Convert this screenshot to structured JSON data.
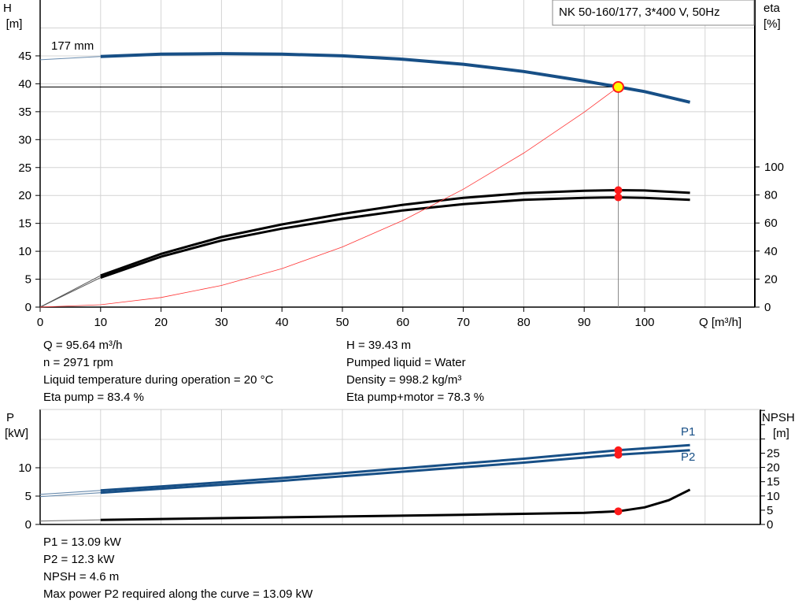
{
  "chart_data": [
    {
      "type": "line",
      "title": "NK 50-160/177, 3*400 V, 50Hz",
      "xlabel": "Q [m³/h]",
      "ylabel_left": [
        "H",
        "[m]"
      ],
      "ylabel_right": [
        "eta",
        "[%]"
      ],
      "xlim": [
        0,
        118
      ],
      "ylim_left": [
        0,
        55
      ],
      "ylim_right_eta": [
        0,
        100
      ],
      "x_ticks": [
        0,
        10,
        20,
        30,
        40,
        50,
        60,
        70,
        80,
        90,
        100
      ],
      "y_ticks_left": [
        0,
        5,
        10,
        15,
        20,
        25,
        30,
        35,
        40,
        45
      ],
      "y_ticks_right": [
        0,
        20,
        40,
        60,
        80,
        100
      ],
      "grid": true,
      "curve_label": "177 mm",
      "series": [
        {
          "key": "H",
          "axis": "left",
          "color": "#174f86",
          "x": [
            10,
            20,
            30,
            40,
            50,
            60,
            70,
            80,
            90,
            95.64,
            100,
            107.5
          ],
          "y": [
            44.9,
            45.3,
            45.4,
            45.3,
            45.0,
            44.4,
            43.5,
            42.2,
            40.5,
            39.43,
            38.6,
            36.7
          ],
          "extrapolated": {
            "x": [
              0,
              10
            ],
            "y": [
              44.3,
              44.9
            ]
          }
        },
        {
          "key": "eta_pump",
          "axis": "right",
          "color": "#000000",
          "x": [
            10,
            20,
            30,
            40,
            50,
            60,
            70,
            80,
            90,
            95.64,
            100,
            107.5
          ],
          "y": [
            22.5,
            38,
            50,
            59,
            66.5,
            73,
            78,
            81.3,
            83,
            83.4,
            83.2,
            81.5
          ],
          "extrapolated": {
            "x": [
              0,
              10
            ],
            "y": [
              0,
              22.5
            ]
          }
        },
        {
          "key": "eta_pump_motor",
          "axis": "right",
          "color": "#000000",
          "x": [
            10,
            20,
            30,
            40,
            50,
            60,
            70,
            80,
            90,
            95.64,
            100,
            107.5
          ],
          "y": [
            21,
            36,
            47.5,
            56,
            63,
            69,
            73.5,
            76.5,
            78,
            78.3,
            78,
            76.5
          ],
          "extrapolated": {
            "x": [
              0,
              10
            ],
            "y": [
              0,
              21
            ]
          }
        },
        {
          "key": "system",
          "axis": "left",
          "color": "#ff3333",
          "x": [
            0,
            10,
            20,
            30,
            40,
            50,
            60,
            70,
            80,
            90,
            95.64
          ],
          "y": [
            0,
            0.43,
            1.72,
            3.88,
            6.9,
            10.78,
            15.52,
            21.12,
            27.59,
            34.92,
            39.43
          ]
        }
      ],
      "duty_point": {
        "Q": 95.64,
        "H": 39.43,
        "eta_pump": 83.4,
        "eta_pump_motor": 78.3
      }
    },
    {
      "type": "line",
      "ylabel_left": [
        "P",
        "[kW]"
      ],
      "ylabel_right": [
        "NPSH",
        "[m]"
      ],
      "xlim": [
        0,
        118
      ],
      "ylim_left": [
        0,
        20
      ],
      "ylim_right": [
        0,
        40
      ],
      "y_ticks_left": [
        0,
        5,
        10
      ],
      "y_ticks_right": [
        0,
        5,
        10,
        15,
        20,
        25
      ],
      "grid": true,
      "series": [
        {
          "name": "P1",
          "axis": "left",
          "color": "#174f86",
          "x": [
            10,
            20,
            40,
            60,
            80,
            95.64,
            107.5
          ],
          "y": [
            6.0,
            6.7,
            8.2,
            9.9,
            11.6,
            13.09,
            14.0
          ],
          "extrapolated": {
            "x": [
              0,
              10
            ],
            "y": [
              5.3,
              6.0
            ]
          }
        },
        {
          "name": "P2",
          "axis": "left",
          "color": "#174f86",
          "x": [
            10,
            20,
            40,
            60,
            80,
            95.64,
            107.5
          ],
          "y": [
            5.6,
            6.3,
            7.7,
            9.3,
            10.9,
            12.3,
            13.1
          ],
          "extrapolated": {
            "x": [
              0,
              10
            ],
            "y": [
              4.9,
              5.6
            ]
          }
        },
        {
          "key": "NPSH",
          "axis": "right",
          "color": "#000000",
          "x": [
            10,
            30,
            50,
            70,
            90,
            95.64,
            100,
            104,
            107.5
          ],
          "y": [
            1.6,
            2.2,
            2.8,
            3.4,
            4.1,
            4.6,
            6.0,
            8.5,
            12.2
          ],
          "extrapolated": {
            "x": [
              0,
              10
            ],
            "y": [
              1.2,
              1.6
            ]
          }
        }
      ],
      "duty_point": {
        "Q": 95.64,
        "P1": 13.09,
        "P2": 12.3,
        "NPSH": 4.6
      }
    }
  ],
  "info1": {
    "left": [
      "Q = 95.64 m³/h",
      "n = 2971 rpm",
      "Liquid temperature during operation = 20 °C",
      "Eta pump = 83.4 %"
    ],
    "right": [
      "H = 39.43 m",
      "Pumped liquid = Water",
      "Density = 998.2 kg/m³",
      "Eta pump+motor = 78.3 %"
    ]
  },
  "info2": [
    "P1 = 13.09 kW",
    "P2 = 12.3 kW",
    "NPSH = 4.6 m",
    "Max power P2 required along the curve = 13.09 kW"
  ]
}
